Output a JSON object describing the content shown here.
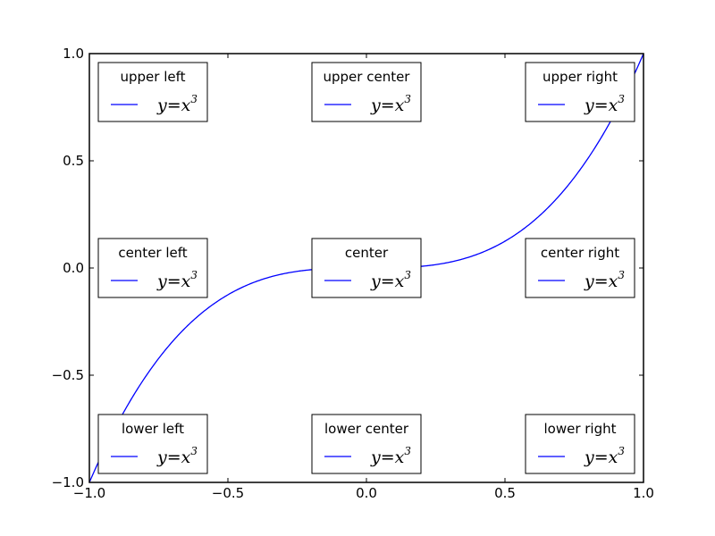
{
  "chart_data": {
    "type": "line",
    "title": "",
    "xlabel": "",
    "ylabel": "",
    "xlim": [
      -1.0,
      1.0
    ],
    "ylim": [
      -1.0,
      1.0
    ],
    "grid": false,
    "x_ticks": [
      -1.0,
      -0.5,
      0.0,
      0.5,
      1.0
    ],
    "x_tick_labels": [
      "−1.0",
      "−0.5",
      "0.0",
      "0.5",
      "1.0"
    ],
    "y_ticks": [
      -1.0,
      -0.5,
      0.0,
      0.5,
      1.0
    ],
    "y_tick_labels": [
      "−1.0",
      "−0.5",
      "0.0",
      "0.5",
      "1.0"
    ],
    "series": [
      {
        "name": "y=x3",
        "color": "#0000ff",
        "function": "x^3",
        "x": [
          -1.0,
          -0.9,
          -0.8,
          -0.7,
          -0.6,
          -0.5,
          -0.4,
          -0.3,
          -0.2,
          -0.1,
          0.0,
          0.1,
          0.2,
          0.3,
          0.4,
          0.5,
          0.6,
          0.7,
          0.8,
          0.9,
          1.0
        ],
        "y": [
          -1.0,
          -0.729,
          -0.512,
          -0.343,
          -0.216,
          -0.125,
          -0.064,
          -0.027,
          -0.008,
          -0.001,
          0.0,
          0.001,
          0.008,
          0.027,
          0.064,
          0.125,
          0.216,
          0.343,
          0.512,
          0.729,
          1.0
        ]
      }
    ],
    "legends": [
      {
        "title": "upper left",
        "placement": "upper left",
        "label_base": "y=x",
        "label_exp": "3"
      },
      {
        "title": "upper center",
        "placement": "upper center",
        "label_base": "y=x",
        "label_exp": "3"
      },
      {
        "title": "upper right",
        "placement": "upper right",
        "label_base": "y=x",
        "label_exp": "3"
      },
      {
        "title": "center left",
        "placement": "center left",
        "label_base": "y=x",
        "label_exp": "3"
      },
      {
        "title": "center",
        "placement": "center",
        "label_base": "y=x",
        "label_exp": "3"
      },
      {
        "title": "center right",
        "placement": "center right",
        "label_base": "y=x",
        "label_exp": "3"
      },
      {
        "title": "lower left",
        "placement": "lower left",
        "label_base": "y=x",
        "label_exp": "3"
      },
      {
        "title": "lower center",
        "placement": "lower center",
        "label_base": "y=x",
        "label_exp": "3"
      },
      {
        "title": "lower right",
        "placement": "lower right",
        "label_base": "y=x",
        "label_exp": "3"
      }
    ]
  }
}
